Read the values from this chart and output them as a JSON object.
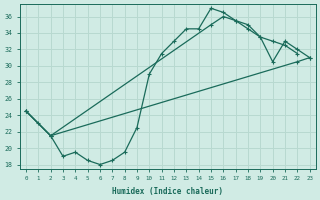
{
  "title": "",
  "xlabel": "Humidex (Indice chaleur)",
  "bg_color": "#d0ebe4",
  "grid_color": "#b8d9d0",
  "line_color": "#1a6b5a",
  "line1_x": [
    0,
    1,
    2,
    3,
    4,
    5,
    6,
    7,
    8,
    9,
    10,
    11,
    12,
    13,
    14,
    15,
    16,
    17,
    18,
    19,
    20,
    21,
    22
  ],
  "line1_y": [
    24.5,
    23.0,
    21.5,
    19.0,
    19.5,
    18.5,
    18.0,
    18.5,
    19.5,
    22.5,
    29.0,
    31.5,
    33.0,
    34.5,
    34.5,
    37.0,
    36.5,
    35.5,
    34.5,
    33.5,
    33.0,
    32.5,
    31.5
  ],
  "line2_x": [
    0,
    2,
    15,
    16,
    17,
    18,
    19,
    20,
    21,
    22,
    23
  ],
  "line2_y": [
    24.5,
    21.5,
    35.0,
    36.0,
    35.5,
    35.0,
    33.5,
    30.5,
    33.0,
    32.0,
    31.0
  ],
  "line3_x": [
    0,
    2,
    22,
    23
  ],
  "line3_y": [
    24.5,
    21.5,
    30.5,
    31.0
  ],
  "ylim": [
    17.5,
    37.5
  ],
  "xlim": [
    -0.5,
    23.5
  ],
  "yticks": [
    18,
    20,
    22,
    24,
    26,
    28,
    30,
    32,
    34,
    36
  ],
  "xticks": [
    0,
    1,
    2,
    3,
    4,
    5,
    6,
    7,
    8,
    9,
    10,
    11,
    12,
    13,
    14,
    15,
    16,
    17,
    18,
    19,
    20,
    21,
    22,
    23
  ]
}
